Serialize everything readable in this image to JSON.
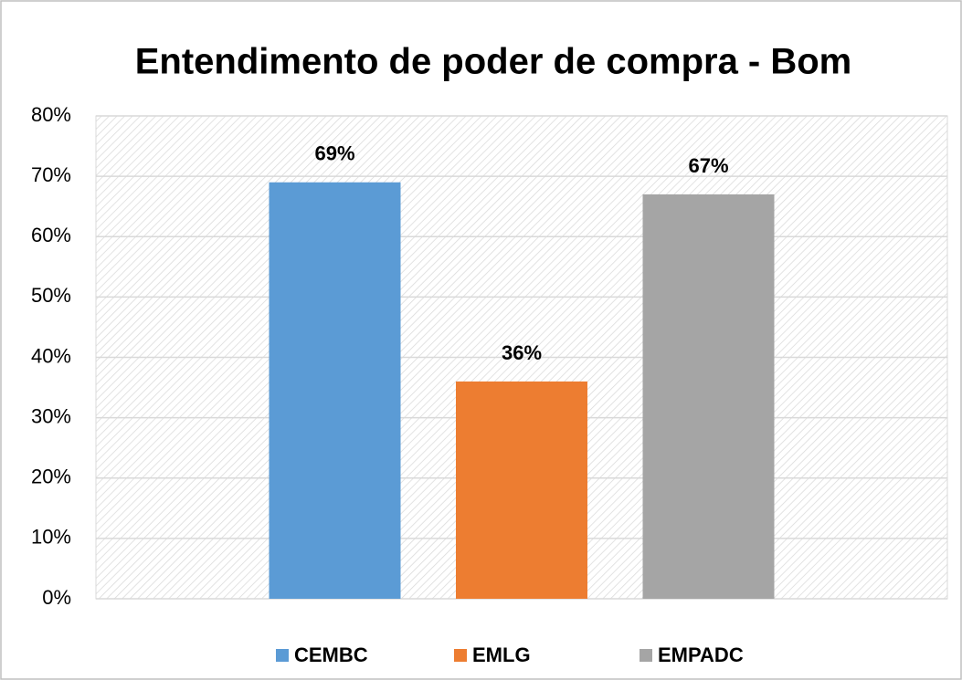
{
  "chart_data": {
    "type": "bar",
    "title": "Entendimento de poder de compra - Bom",
    "categories": [
      "CEMBC",
      "EMLG",
      "EMPADC"
    ],
    "values": [
      69,
      36,
      67
    ],
    "value_labels": [
      "69%",
      "36%",
      "67%"
    ],
    "colors": [
      "#5b9bd5",
      "#ed7d31",
      "#a5a5a5"
    ],
    "ylim": [
      0,
      80
    ],
    "yticks": [
      {
        "value": 0,
        "label": "0%"
      },
      {
        "value": 10,
        "label": "10%"
      },
      {
        "value": 20,
        "label": "20%"
      },
      {
        "value": 30,
        "label": "30%"
      },
      {
        "value": 40,
        "label": "40%"
      },
      {
        "value": 50,
        "label": "50%"
      },
      {
        "value": 60,
        "label": "60%"
      },
      {
        "value": 70,
        "label": "70%"
      },
      {
        "value": 80,
        "label": "80%"
      }
    ],
    "grid": true,
    "legend": "bottom"
  }
}
